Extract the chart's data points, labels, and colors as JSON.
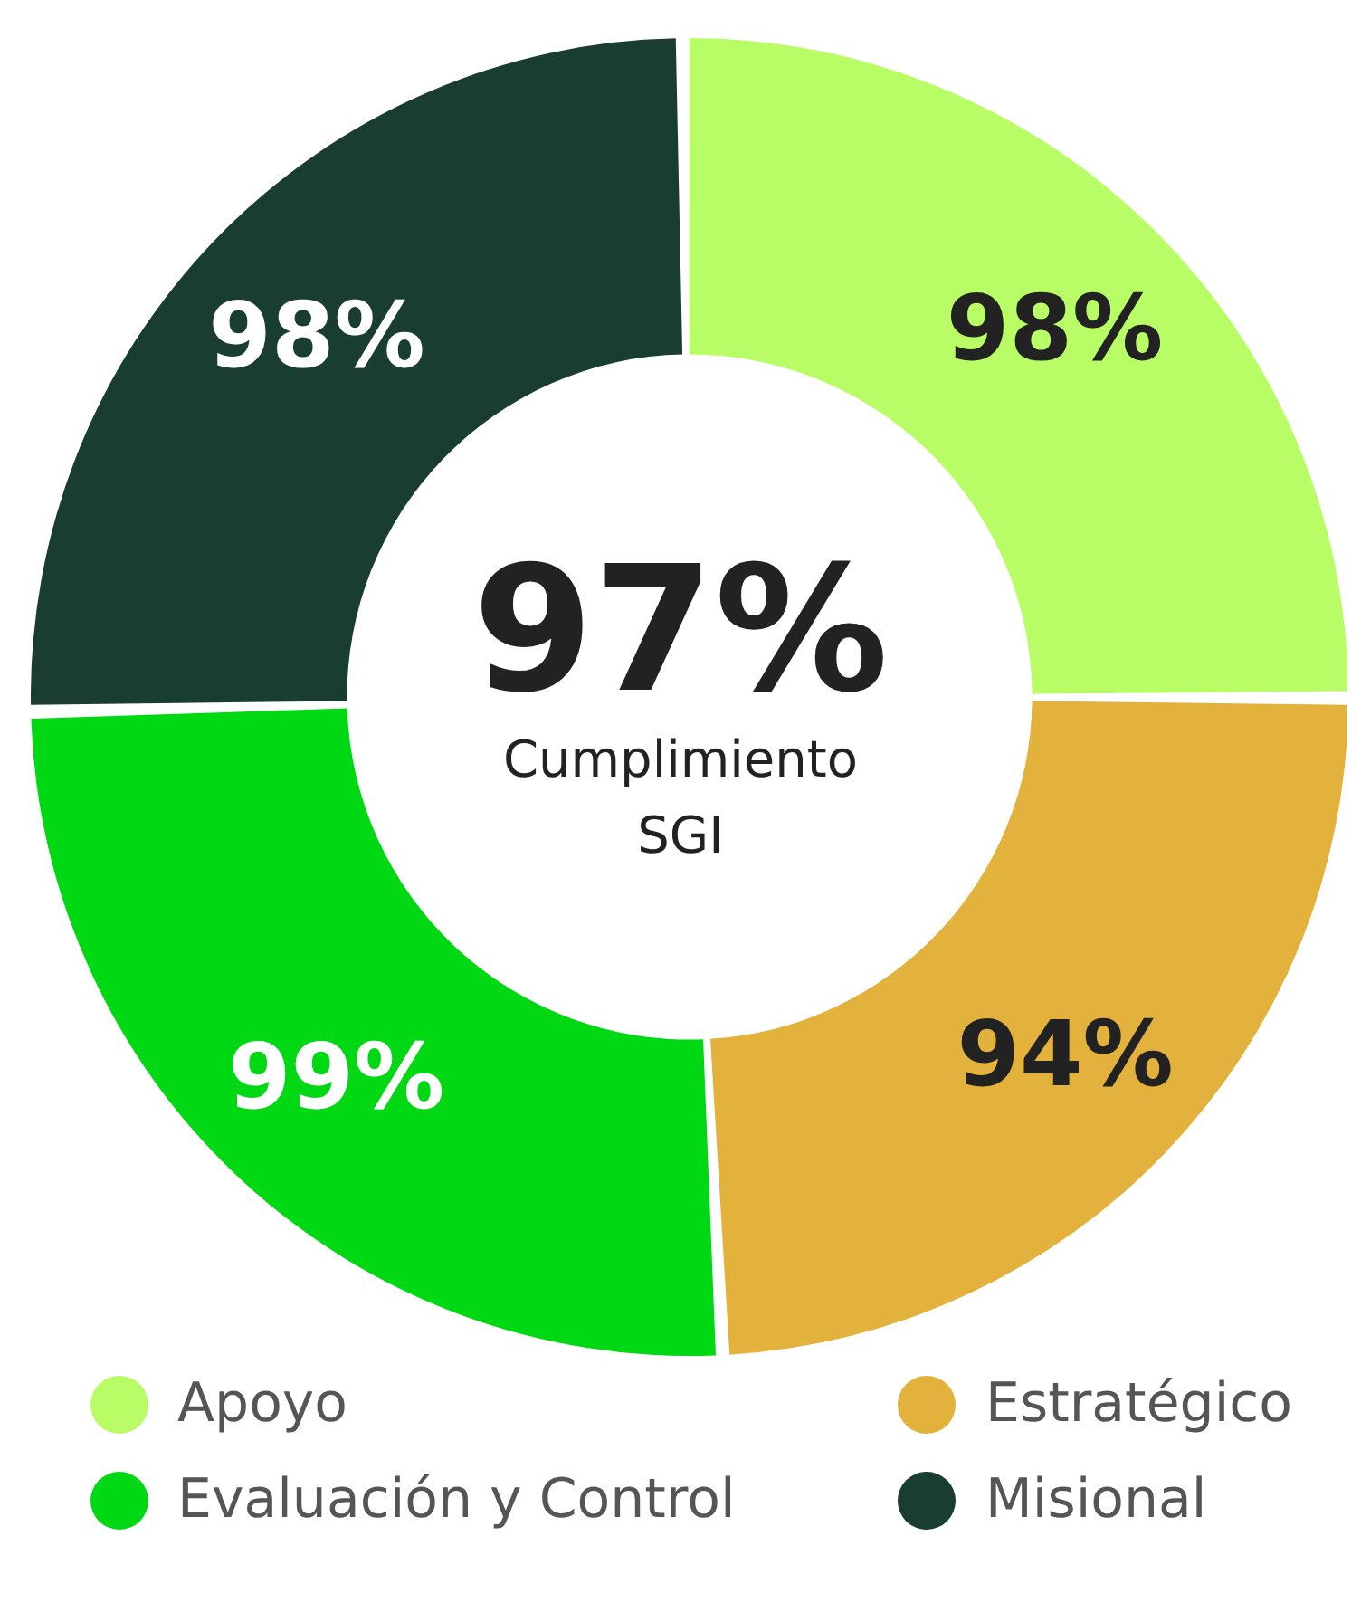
{
  "chart_data": {
    "type": "donut",
    "categories": [
      "Apoyo",
      "Estratégico",
      "Evaluación y Control",
      "Misional"
    ],
    "values": [
      98,
      94,
      99,
      98
    ],
    "value_labels": [
      "98%",
      "94%",
      "99%",
      "98%"
    ],
    "colors": [
      "#b8fd66",
      "#e3b23c",
      "#00d813",
      "#1a3d33"
    ],
    "annotations": [
      "97%",
      "Cumplimiento SGI"
    ],
    "legend": "bottom"
  }
}
